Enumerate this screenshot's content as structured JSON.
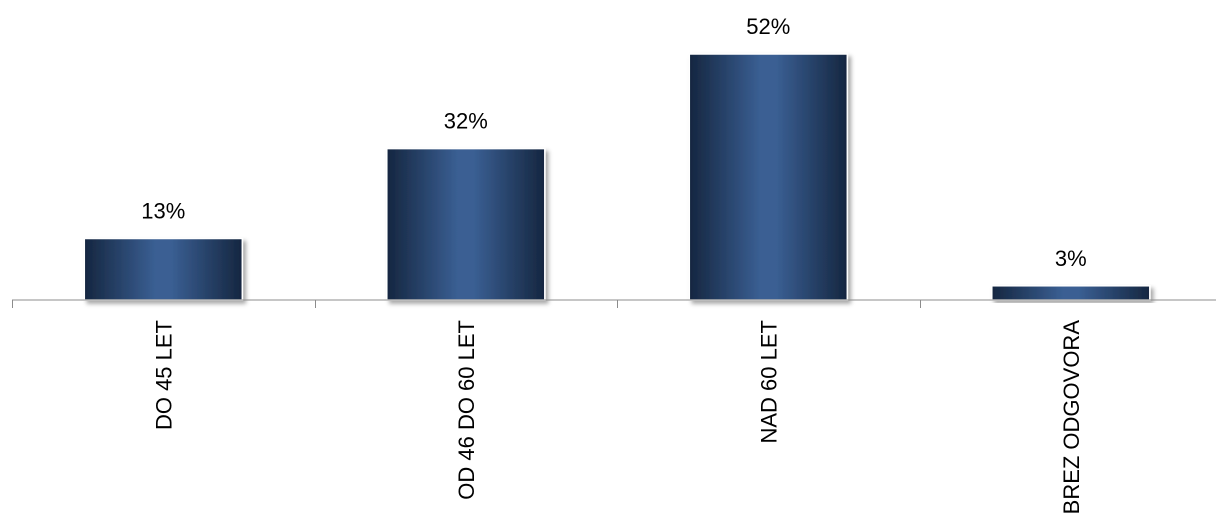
{
  "chart_data": {
    "type": "bar",
    "categories": [
      "DO 45 LET",
      "OD 46 DO 60 LET",
      "NAD 60 LET",
      "BREZ ODGOVORA"
    ],
    "values": [
      13,
      32,
      52,
      3
    ],
    "data_labels": [
      "13%",
      "32%",
      "52%",
      "3%"
    ],
    "unit": "%",
    "title": "",
    "xlabel": "",
    "ylabel": "",
    "ylim": [
      0,
      52
    ],
    "grid": false,
    "legend": "none",
    "colors": {
      "bar_dark": "#152640",
      "bar_light": "#3a5f93",
      "axis": "#8c8c8c"
    }
  }
}
